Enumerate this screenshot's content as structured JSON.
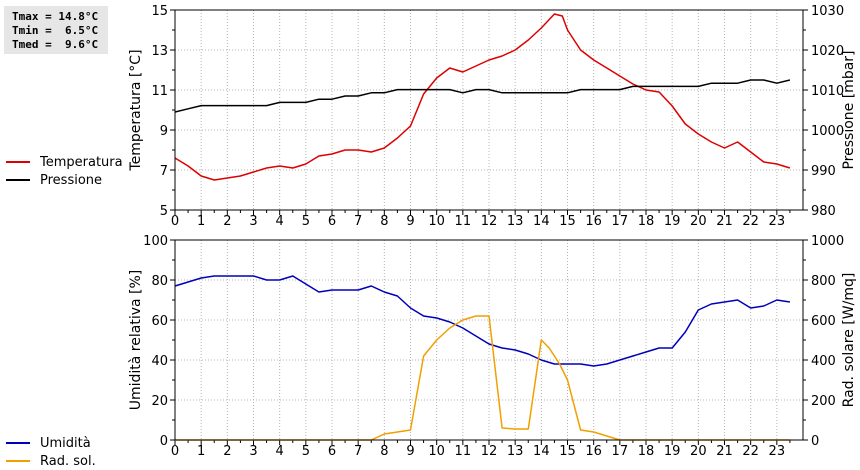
{
  "stats": {
    "tmax": "Tmax = 14.8°C",
    "tmin": "Tmin =  6.5°C",
    "tmed": "Tmed =  9.6°C"
  },
  "legend_top": [
    {
      "label": "Temperatura",
      "color": "#dd0000"
    },
    {
      "label": "Pressione",
      "color": "#000000"
    }
  ],
  "legend_bottom": [
    {
      "label": "Umidità",
      "color": "#0000bb"
    },
    {
      "label": "Rad. sol.",
      "color": "#f0a000"
    }
  ],
  "chart_data": [
    {
      "type": "line",
      "x_ticks": [
        "0",
        "1",
        "2",
        "3",
        "4",
        "5",
        "6",
        "7",
        "8",
        "9",
        "10",
        "11",
        "12",
        "13",
        "14",
        "15",
        "16",
        "17",
        "18",
        "19",
        "20",
        "21",
        "22",
        "23"
      ],
      "xlim": [
        0,
        24
      ],
      "ylabel": "Temperatura [°C]",
      "ylim": [
        5,
        15
      ],
      "y_ticks": [
        "5",
        "7",
        "9",
        "11",
        "13",
        "15"
      ],
      "y2label": "Pressione [mbar]",
      "y2lim": [
        980,
        1030
      ],
      "y2_ticks": [
        "980",
        "990",
        "1000",
        "1010",
        "1020",
        "1030"
      ],
      "grid": true,
      "series": [
        {
          "name": "Temperatura",
          "axis": "left",
          "color": "#dd0000",
          "x": [
            0,
            0.5,
            1,
            1.5,
            2,
            2.5,
            3,
            3.5,
            4,
            4.5,
            5,
            5.5,
            6,
            6.5,
            7,
            7.5,
            8,
            8.5,
            9,
            9.5,
            10,
            10.5,
            11,
            11.5,
            12,
            12.5,
            13,
            13.5,
            14,
            14.5,
            14.8,
            15,
            15.5,
            16,
            16.5,
            17,
            17.5,
            18,
            18.5,
            19,
            19.5,
            20,
            20.5,
            21,
            21.5,
            22,
            22.5,
            23,
            23.5
          ],
          "values": [
            7.6,
            7.2,
            6.7,
            6.5,
            6.6,
            6.7,
            6.9,
            7.1,
            7.2,
            7.1,
            7.3,
            7.7,
            7.8,
            8.0,
            8.0,
            7.9,
            8.1,
            8.6,
            9.2,
            10.8,
            11.6,
            12.1,
            11.9,
            12.2,
            12.5,
            12.7,
            13.0,
            13.5,
            14.1,
            14.8,
            14.7,
            14.0,
            13.0,
            12.5,
            12.1,
            11.7,
            11.3,
            11.0,
            10.9,
            10.2,
            9.3,
            8.8,
            8.4,
            8.1,
            8.4,
            7.9,
            7.4,
            7.3,
            7.1
          ]
        },
        {
          "name": "Pressione",
          "axis": "right",
          "color": "#000000",
          "x": [
            0,
            0.5,
            1,
            1.5,
            2,
            2.5,
            3,
            3.5,
            4,
            4.5,
            5,
            5.5,
            6,
            6.5,
            7,
            7.5,
            8,
            8.5,
            9,
            9.5,
            10,
            10.5,
            11,
            11.5,
            12,
            12.5,
            13,
            13.5,
            14,
            14.5,
            15,
            15.5,
            16,
            16.5,
            17,
            17.5,
            18,
            18.5,
            19,
            19.5,
            20,
            20.5,
            21,
            21.5,
            22,
            22.5,
            23,
            23.5
          ],
          "values": [
            1004.5,
            1005.3,
            1006.1,
            1006.1,
            1006.1,
            1006.1,
            1006.1,
            1006.1,
            1006.9,
            1006.9,
            1006.9,
            1007.7,
            1007.7,
            1008.5,
            1008.5,
            1009.3,
            1009.3,
            1010.1,
            1010.1,
            1010.1,
            1010.1,
            1010.1,
            1009.3,
            1010.1,
            1010.1,
            1009.3,
            1009.3,
            1009.3,
            1009.3,
            1009.3,
            1009.3,
            1010.1,
            1010.1,
            1010.1,
            1010.1,
            1010.9,
            1010.9,
            1010.9,
            1010.9,
            1010.9,
            1010.9,
            1011.7,
            1011.7,
            1011.7,
            1012.5,
            1012.5,
            1011.7,
            1012.5
          ]
        }
      ]
    },
    {
      "type": "line",
      "x_ticks": [
        "0",
        "1",
        "2",
        "3",
        "4",
        "5",
        "6",
        "7",
        "8",
        "9",
        "10",
        "11",
        "12",
        "13",
        "14",
        "15",
        "16",
        "17",
        "18",
        "19",
        "20",
        "21",
        "22",
        "23"
      ],
      "xlim": [
        0,
        24
      ],
      "ylabel": "Umidità relativa [%]",
      "ylim": [
        0,
        100
      ],
      "y_ticks": [
        "0",
        "20",
        "40",
        "60",
        "80",
        "100"
      ],
      "y2label": "Rad. solare [W/mq]",
      "y2lim": [
        0,
        1000
      ],
      "y2_ticks": [
        "0",
        "200",
        "400",
        "600",
        "800",
        "1000"
      ],
      "grid": true,
      "series": [
        {
          "name": "Umidità",
          "axis": "left",
          "color": "#0000bb",
          "x": [
            0,
            0.5,
            1,
            1.5,
            2,
            2.5,
            3,
            3.5,
            4,
            4.5,
            5,
            5.5,
            6,
            6.5,
            7,
            7.5,
            8,
            8.5,
            9,
            9.5,
            10,
            10.5,
            11,
            11.5,
            12,
            12.5,
            13,
            13.5,
            14,
            14.5,
            15,
            15.5,
            16,
            16.5,
            17,
            17.5,
            18,
            18.5,
            19,
            19.5,
            20,
            20.5,
            21,
            21.5,
            22,
            22.5,
            23,
            23.5
          ],
          "values": [
            77,
            79,
            81,
            82,
            82,
            82,
            82,
            80,
            80,
            82,
            78,
            74,
            75,
            75,
            75,
            77,
            74,
            72,
            66,
            62,
            61,
            59,
            56,
            52,
            48,
            46,
            45,
            43,
            40,
            38,
            38,
            38,
            37,
            38,
            40,
            42,
            44,
            46,
            46,
            54,
            65,
            68,
            69,
            70,
            66,
            67,
            70,
            69
          ]
        },
        {
          "name": "Rad. sol.",
          "axis": "right",
          "color": "#f0a000",
          "x": [
            0,
            1,
            2,
            3,
            4,
            5,
            6,
            7,
            7.5,
            8,
            8.5,
            9,
            9.5,
            10,
            10.5,
            11,
            11.5,
            12,
            12.5,
            13,
            13.5,
            14,
            14.3,
            14.7,
            15,
            15.5,
            16,
            16.5,
            17,
            18,
            19,
            20,
            21,
            22,
            23,
            23.5
          ],
          "values": [
            0,
            0,
            0,
            0,
            0,
            0,
            0,
            0,
            0,
            30,
            40,
            50,
            420,
            500,
            560,
            600,
            620,
            620,
            60,
            55,
            55,
            500,
            460,
            380,
            300,
            50,
            40,
            20,
            0,
            0,
            0,
            0,
            0,
            0,
            0,
            0
          ]
        }
      ]
    }
  ]
}
